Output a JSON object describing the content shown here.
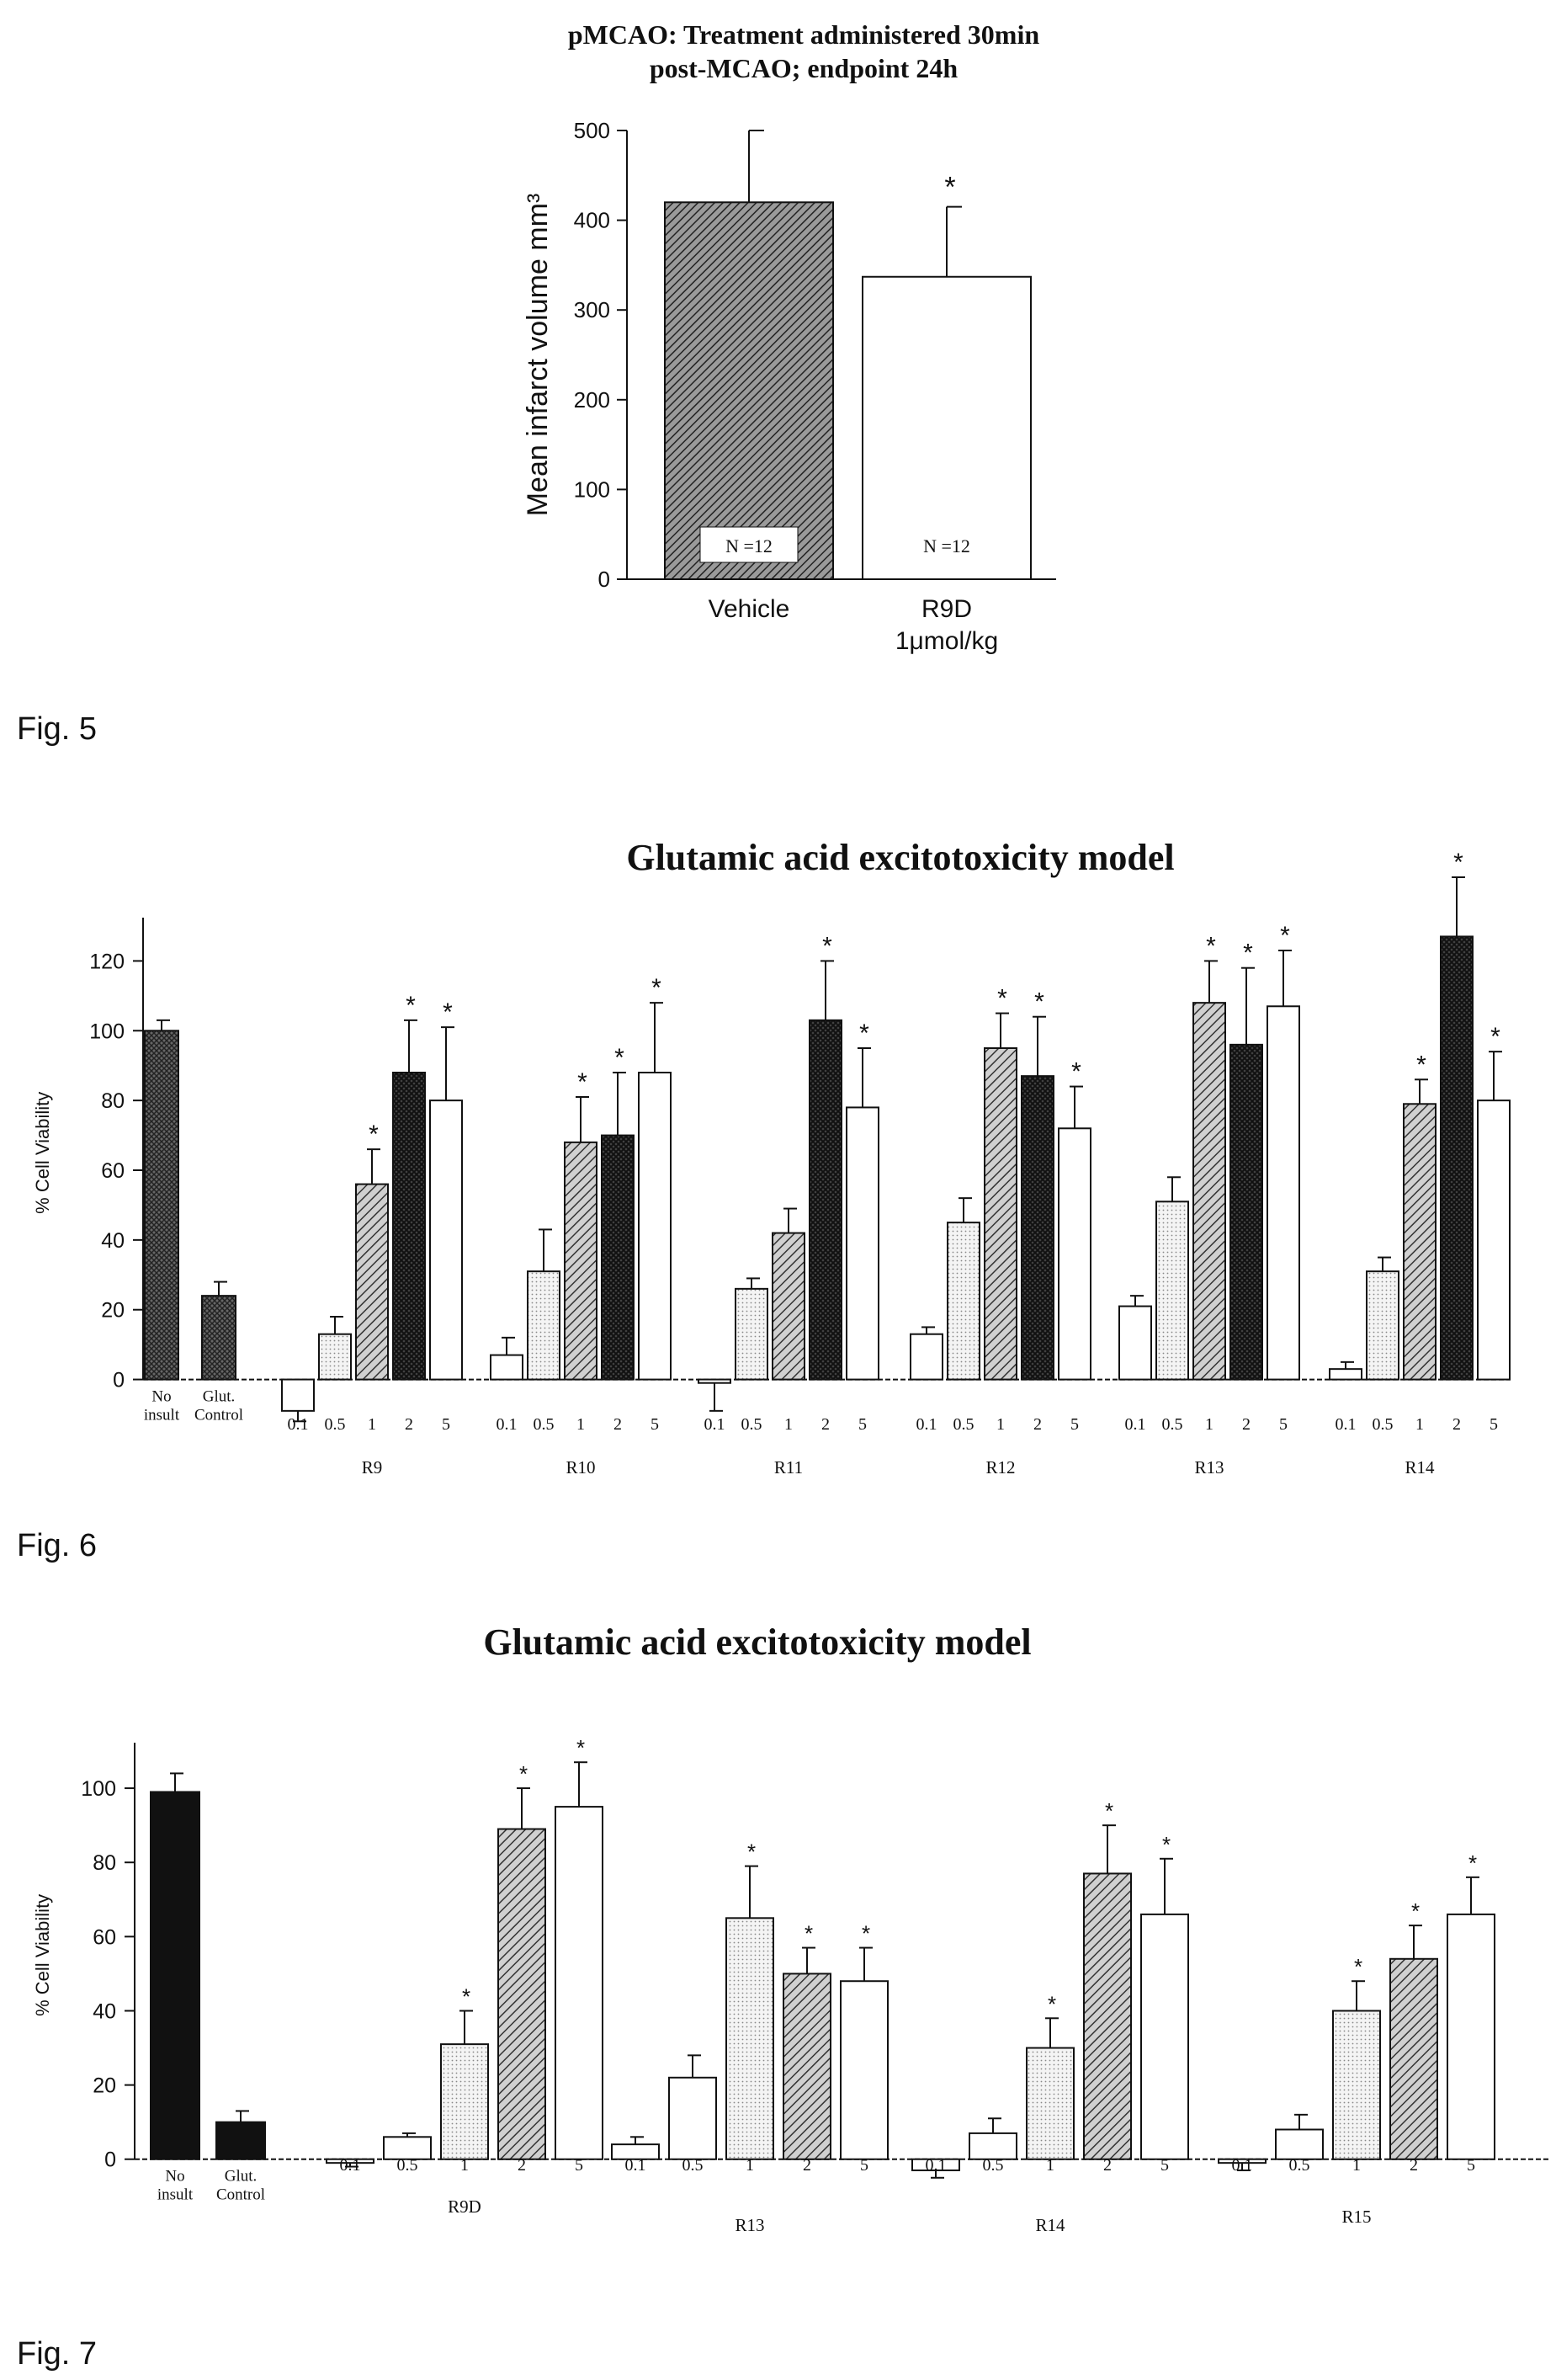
{
  "figures": [
    {
      "caption": "Fig. 5",
      "chart_data": {
        "type": "bar",
        "title_lines": [
          "pMCAO: Treatment administered 30min",
          "post-MCAO; endpoint 24h"
        ],
        "ylabel": "Mean infarct volume mm³",
        "ylim": [
          0,
          500
        ],
        "yticks": [
          0,
          100,
          200,
          300,
          400,
          500
        ],
        "categories": [
          {
            "label_lines": [
              "Vehicle"
            ]
          },
          {
            "label_lines": [
              "R9D",
              "1μmol/kg"
            ]
          }
        ],
        "bars": [
          {
            "value": 420,
            "error": 80,
            "pattern": "hatch-dense",
            "annotation": "N =12",
            "significant": false
          },
          {
            "value": 337,
            "error": 78,
            "pattern": "white",
            "annotation": "N =12",
            "significant": true
          }
        ]
      }
    },
    {
      "caption": "Fig. 6",
      "chart_data": {
        "type": "bar",
        "title": "Glutamic acid excitotoxicity model",
        "ylabel": "% Cell Viability",
        "ylim": [
          -10,
          130
        ],
        "yticks": [
          0,
          20,
          40,
          60,
          80,
          100,
          120
        ],
        "controls": [
          {
            "label_lines": [
              "No",
              "insult"
            ],
            "value": 100,
            "error": 3,
            "pattern": "crosshatch"
          },
          {
            "label_lines": [
              "Glut.",
              "Control"
            ],
            "value": 24,
            "error": 4,
            "pattern": "crosshatch"
          }
        ],
        "dose_labels": [
          "0.1",
          "0.5",
          "1",
          "2",
          "5"
        ],
        "dose_patterns": [
          "white",
          "dots",
          "hatch-diag",
          "crosshatch-dark",
          "white"
        ],
        "groups": [
          {
            "name": "R9",
            "values": [
              -9,
              13,
              56,
              88,
              80
            ],
            "errors": [
              3,
              5,
              10,
              15,
              21
            ],
            "significant": [
              false,
              false,
              true,
              true,
              true
            ]
          },
          {
            "name": "R10",
            "values": [
              7,
              31,
              68,
              70,
              88
            ],
            "errors": [
              5,
              12,
              13,
              18,
              20
            ],
            "significant": [
              false,
              false,
              true,
              true,
              true
            ]
          },
          {
            "name": "R11",
            "values": [
              -1,
              26,
              42,
              103,
              78
            ],
            "errors": [
              8,
              3,
              7,
              17,
              17
            ],
            "significant": [
              false,
              false,
              false,
              true,
              true
            ]
          },
          {
            "name": "R12",
            "values": [
              13,
              45,
              95,
              87,
              72
            ],
            "errors": [
              2,
              7,
              10,
              17,
              12
            ],
            "significant": [
              false,
              false,
              true,
              true,
              true
            ]
          },
          {
            "name": "R13",
            "values": [
              21,
              51,
              108,
              96,
              107
            ],
            "errors": [
              3,
              7,
              12,
              22,
              16
            ],
            "significant": [
              false,
              false,
              true,
              true,
              true
            ]
          },
          {
            "name": "R14",
            "values": [
              3,
              31,
              79,
              127,
              80
            ],
            "errors": [
              2,
              4,
              7,
              17,
              14
            ],
            "significant": [
              false,
              false,
              true,
              true,
              true
            ]
          }
        ]
      }
    },
    {
      "caption": "Fig. 7",
      "chart_data": {
        "type": "bar",
        "title": "Glutamic acid excitotoxicity model",
        "ylabel": "% Cell Viability",
        "ylim": [
          -8,
          110
        ],
        "yticks": [
          0,
          20,
          40,
          60,
          80,
          100
        ],
        "controls": [
          {
            "label_lines": [
              "No",
              "insult"
            ],
            "value": 99,
            "error": 5,
            "pattern": "black"
          },
          {
            "label_lines": [
              "Glut.",
              "Control"
            ],
            "value": 10,
            "error": 3,
            "pattern": "black"
          }
        ],
        "dose_labels": [
          "0.1",
          "0.5",
          "1",
          "2",
          "5"
        ],
        "dose_patterns": [
          "white",
          "white",
          "dots",
          "hatch-diag",
          "white"
        ],
        "groups": [
          {
            "name": "R9D",
            "values": [
              -1,
              6,
              31,
              89,
              95
            ],
            "errors": [
              1,
              1,
              9,
              11,
              12
            ],
            "significant": [
              false,
              false,
              true,
              true,
              true
            ]
          },
          {
            "name": "R13",
            "values": [
              4,
              22,
              65,
              50,
              48
            ],
            "errors": [
              2,
              6,
              14,
              7,
              9
            ],
            "significant": [
              false,
              false,
              true,
              true,
              true
            ]
          },
          {
            "name": "R14",
            "values": [
              -3,
              7,
              30,
              77,
              66
            ],
            "errors": [
              2,
              4,
              8,
              13,
              15
            ],
            "significant": [
              false,
              false,
              true,
              true,
              true
            ]
          },
          {
            "name": "R15",
            "values": [
              -1,
              8,
              40,
              54,
              66
            ],
            "errors": [
              2,
              4,
              8,
              9,
              10
            ],
            "significant": [
              false,
              false,
              true,
              true,
              true
            ]
          }
        ]
      }
    }
  ]
}
